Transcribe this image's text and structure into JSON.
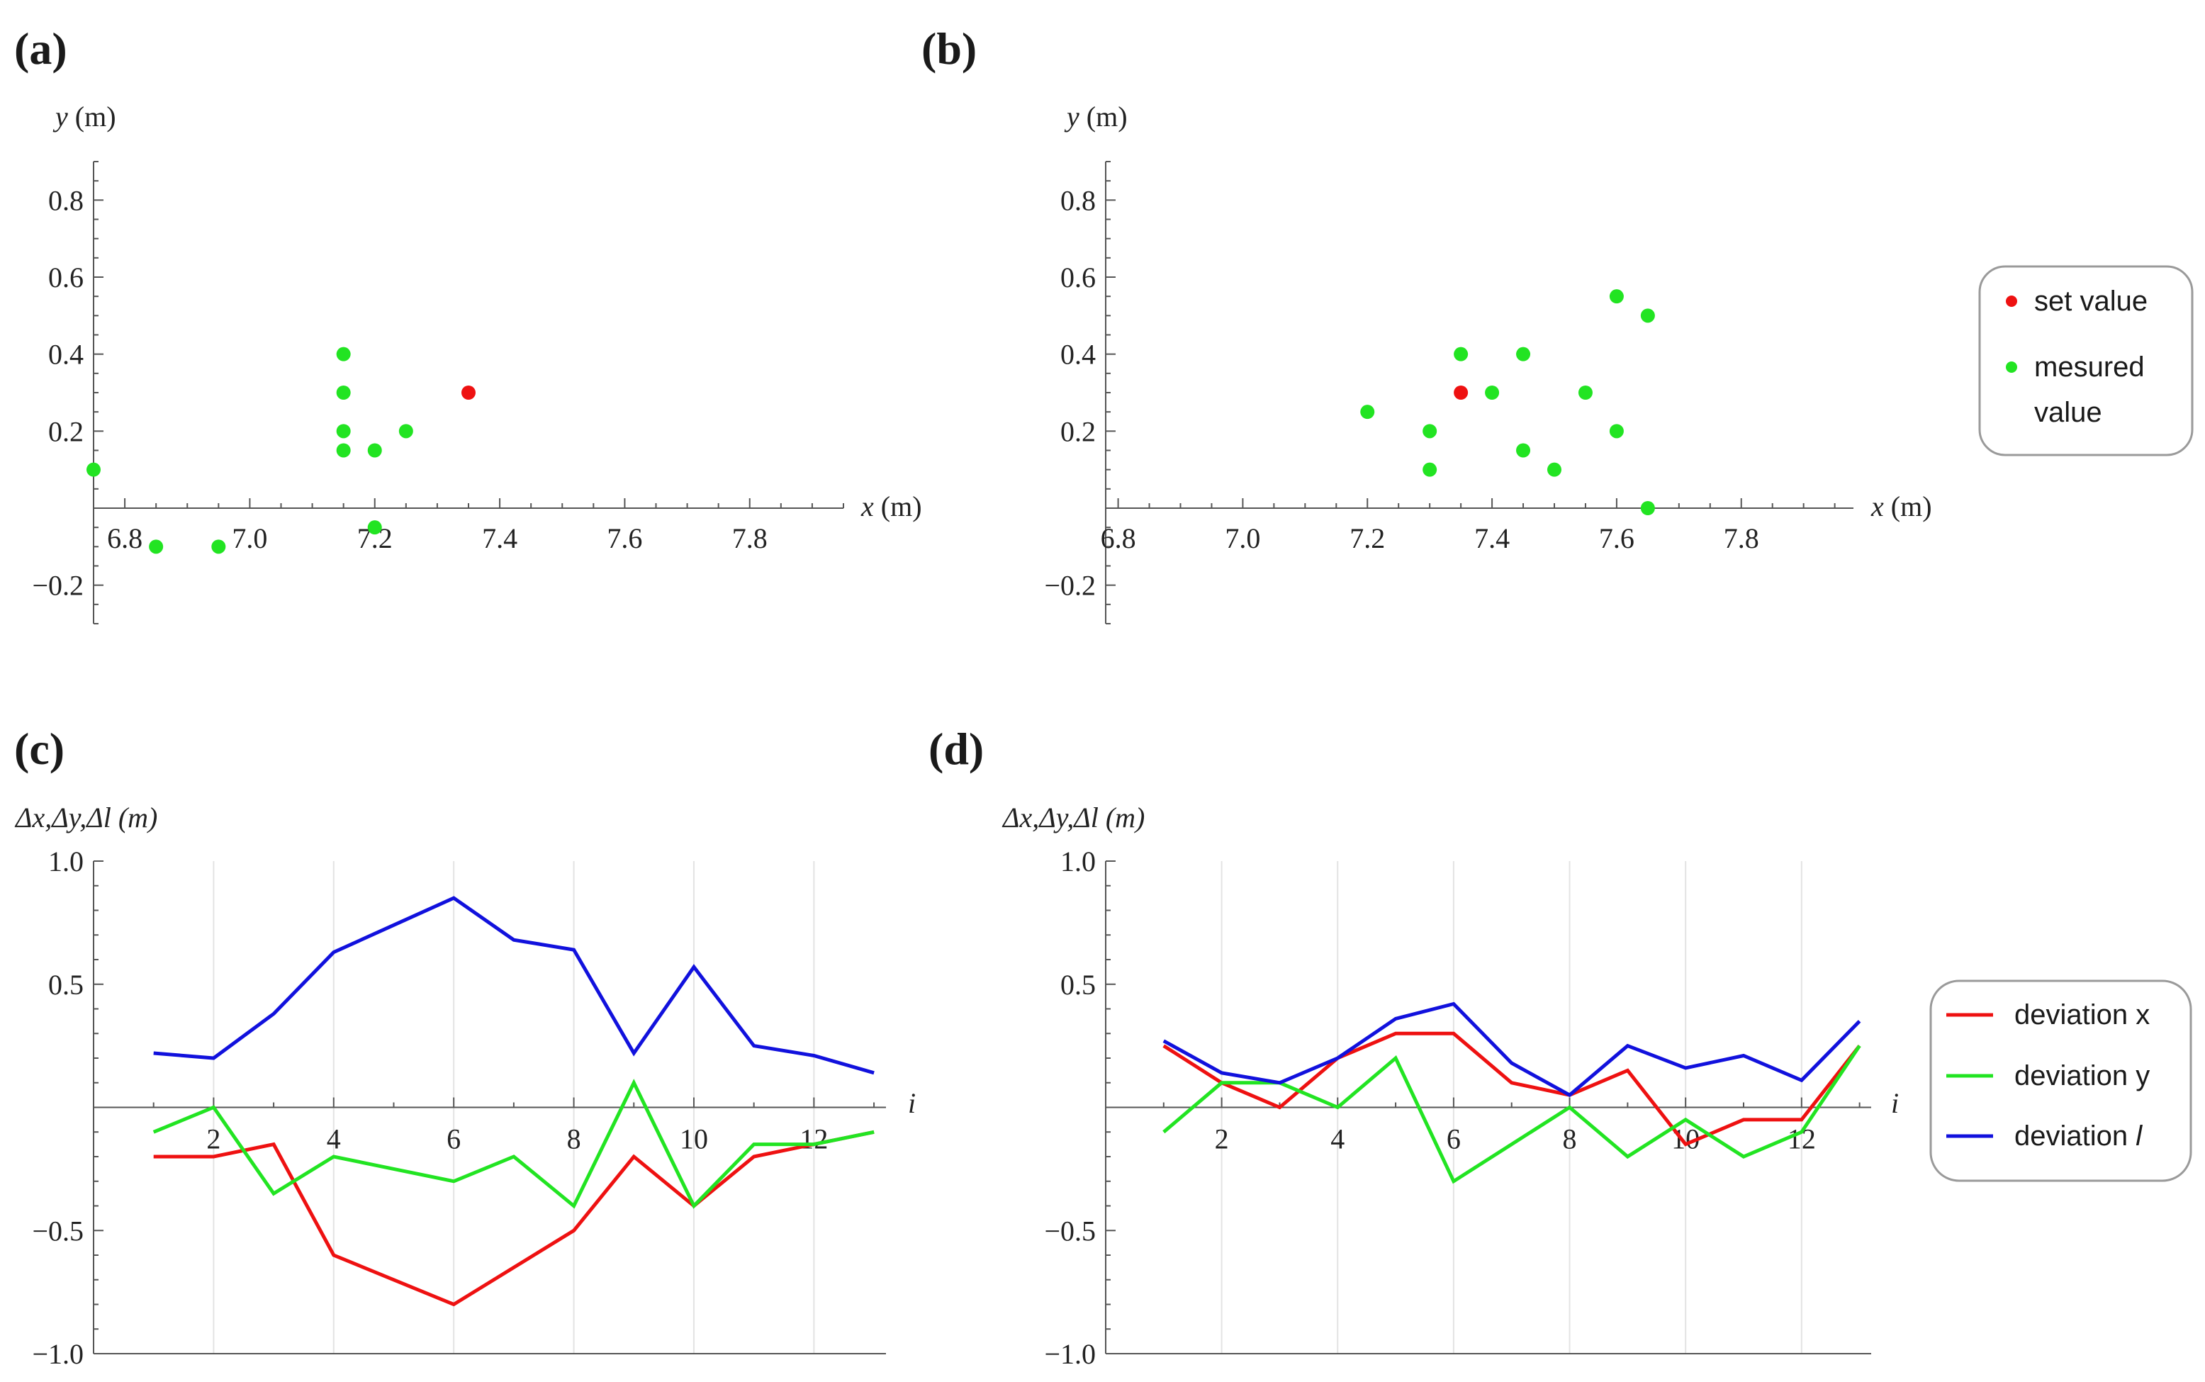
{
  "chart_data": [
    {
      "id": "a",
      "panel_label": "(a)",
      "type": "scatter",
      "xlabel_var": "x",
      "xlabel_unit": " (m)",
      "ylabel_var": "y",
      "ylabel_unit": " (m)",
      "xlim": [
        6.75,
        7.95
      ],
      "ylim": [
        -0.3,
        0.9
      ],
      "xticks": [
        6.8,
        7.0,
        7.2,
        7.4,
        7.6,
        7.8
      ],
      "xtick_labels": [
        "6.8",
        "7.0",
        "7.2",
        "7.4",
        "7.6",
        "7.8"
      ],
      "yticks": [
        -0.2,
        0.2,
        0.4,
        0.6,
        0.8
      ],
      "ytick_labels": [
        "−0.2",
        "0.2",
        "0.4",
        "0.6",
        "0.8"
      ],
      "series": [
        {
          "name": "set value",
          "color": "#ee1111",
          "points": [
            [
              7.35,
              0.3
            ]
          ]
        },
        {
          "name": "mesured value",
          "color": "#22e422",
          "points": [
            [
              6.75,
              0.1
            ],
            [
              6.85,
              -0.1
            ],
            [
              6.95,
              -0.1
            ],
            [
              7.15,
              0.4
            ],
            [
              7.15,
              0.3
            ],
            [
              7.15,
              0.2
            ],
            [
              7.15,
              0.15
            ],
            [
              7.2,
              0.15
            ],
            [
              7.25,
              0.2
            ],
            [
              7.2,
              -0.05
            ]
          ]
        }
      ]
    },
    {
      "id": "b",
      "panel_label": "(b)",
      "type": "scatter",
      "xlabel_var": "x",
      "xlabel_unit": " (m)",
      "ylabel_var": "y",
      "ylabel_unit": " (m)",
      "xlim": [
        6.78,
        7.98
      ],
      "ylim": [
        -0.3,
        0.9
      ],
      "xticks": [
        6.8,
        7.0,
        7.2,
        7.4,
        7.6,
        7.8
      ],
      "xtick_labels": [
        "6.8",
        "7.0",
        "7.2",
        "7.4",
        "7.6",
        "7.8"
      ],
      "yticks": [
        -0.2,
        0.2,
        0.4,
        0.6,
        0.8
      ],
      "ytick_labels": [
        "−0.2",
        "0.2",
        "0.4",
        "0.6",
        "0.8"
      ],
      "legend": {
        "position": "right",
        "entries": [
          {
            "label": "set value",
            "color": "#ee1111"
          },
          {
            "label": "mesured value",
            "color": "#22e422"
          }
        ]
      },
      "series": [
        {
          "name": "set value",
          "color": "#ee1111",
          "points": [
            [
              7.35,
              0.3
            ]
          ]
        },
        {
          "name": "mesured value",
          "color": "#22e422",
          "points": [
            [
              7.2,
              0.25
            ],
            [
              7.3,
              0.2
            ],
            [
              7.3,
              0.1
            ],
            [
              7.35,
              0.4
            ],
            [
              7.4,
              0.3
            ],
            [
              7.45,
              0.4
            ],
            [
              7.45,
              0.15
            ],
            [
              7.5,
              0.1
            ],
            [
              7.55,
              0.3
            ],
            [
              7.6,
              0.55
            ],
            [
              7.6,
              0.2
            ],
            [
              7.65,
              0.5
            ],
            [
              7.65,
              0.0
            ]
          ]
        }
      ]
    },
    {
      "id": "c",
      "panel_label": "(c)",
      "type": "line",
      "xlabel": "i",
      "ylabel": "Δx,Δy,Δl (m)",
      "xlim": [
        0.0,
        13.2
      ],
      "ylim": [
        -1.0,
        1.0
      ],
      "xticks": [
        2,
        4,
        6,
        8,
        10,
        12
      ],
      "xtick_labels": [
        "2",
        "4",
        "6",
        "8",
        "10",
        "12"
      ],
      "yticks": [
        -1.0,
        -0.5,
        0.5,
        1.0
      ],
      "ytick_labels": [
        "−1.0",
        "−0.5",
        "0.5",
        "1.0"
      ],
      "grid": true,
      "x": [
        1,
        2,
        3,
        4,
        5,
        6,
        7,
        8,
        9,
        10,
        11,
        12,
        13
      ],
      "series": [
        {
          "name": "deviation x",
          "color": "#ee1111",
          "values": [
            -0.2,
            -0.2,
            -0.15,
            -0.6,
            -0.7,
            -0.8,
            -0.65,
            -0.5,
            -0.2,
            -0.4,
            -0.2,
            -0.15,
            -0.1
          ]
        },
        {
          "name": "deviation y",
          "color": "#22e422",
          "values": [
            -0.1,
            0.0,
            -0.35,
            -0.2,
            -0.25,
            -0.3,
            -0.2,
            -0.4,
            0.1,
            -0.4,
            -0.15,
            -0.15,
            -0.1
          ]
        },
        {
          "name": "deviation l",
          "color": "#1111dd",
          "values": [
            0.22,
            0.2,
            0.38,
            0.63,
            0.74,
            0.85,
            0.68,
            0.64,
            0.22,
            0.57,
            0.25,
            0.21,
            0.14
          ]
        }
      ]
    },
    {
      "id": "d",
      "panel_label": "(d)",
      "type": "line",
      "xlabel": "i",
      "ylabel": "Δx,Δy,Δl (m)",
      "xlim": [
        0.0,
        13.2
      ],
      "ylim": [
        -1.0,
        1.0
      ],
      "xticks": [
        2,
        4,
        6,
        8,
        10,
        12
      ],
      "xtick_labels": [
        "2",
        "4",
        "6",
        "8",
        "10",
        "12"
      ],
      "yticks": [
        -1.0,
        -0.5,
        0.5,
        1.0
      ],
      "ytick_labels": [
        "−1.0",
        "−0.5",
        "0.5",
        "1.0"
      ],
      "grid": true,
      "x": [
        1,
        2,
        3,
        4,
        5,
        6,
        7,
        8,
        9,
        10,
        11,
        12,
        13
      ],
      "legend": {
        "position": "right",
        "entries": [
          {
            "label": "deviation x",
            "color": "#ee1111"
          },
          {
            "label": "deviation y",
            "color": "#22e422"
          },
          {
            "label": "deviation ",
            "label_italic": "l",
            "color": "#1111dd"
          }
        ]
      },
      "series": [
        {
          "name": "deviation x",
          "color": "#ee1111",
          "values": [
            0.25,
            0.1,
            0.0,
            0.2,
            0.3,
            0.3,
            0.1,
            0.05,
            0.15,
            -0.15,
            -0.05,
            -0.05,
            0.25
          ]
        },
        {
          "name": "deviation y",
          "color": "#22e422",
          "values": [
            -0.1,
            0.1,
            0.1,
            0.0,
            0.2,
            -0.3,
            -0.15,
            0.0,
            -0.2,
            -0.05,
            -0.2,
            -0.1,
            0.25
          ]
        },
        {
          "name": "deviation l",
          "color": "#1111dd",
          "values": [
            0.27,
            0.14,
            0.1,
            0.2,
            0.36,
            0.42,
            0.18,
            0.05,
            0.25,
            0.16,
            0.21,
            0.11,
            0.35
          ]
        }
      ]
    }
  ]
}
